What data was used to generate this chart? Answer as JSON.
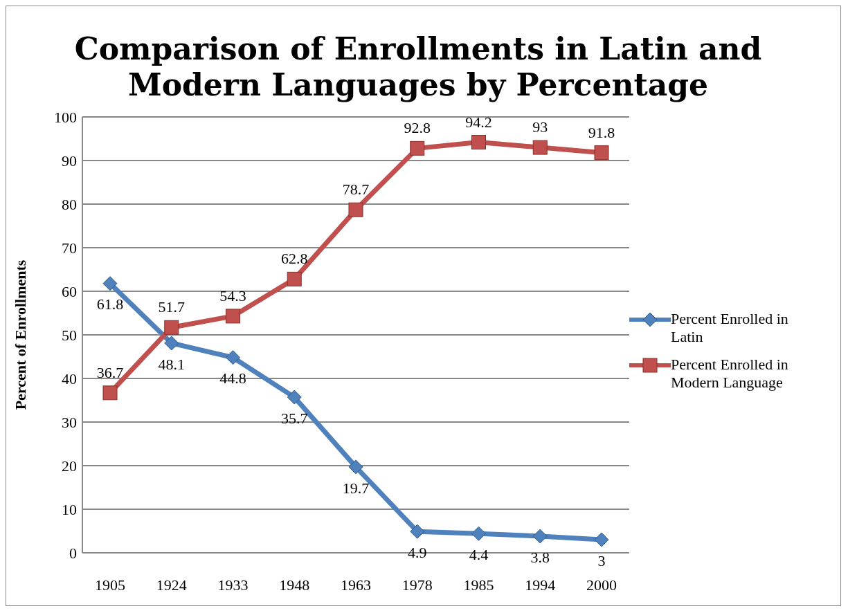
{
  "chart_data": {
    "type": "line",
    "title": "Comparison of Enrollments in Latin and Modern Languages by Percentage",
    "ylabel": "Percent of Enrollments",
    "categories": [
      "1905",
      "1924",
      "1933",
      "1948",
      "1963",
      "1978",
      "1985",
      "1994",
      "2000"
    ],
    "series": [
      {
        "name": "Percent Enrolled in Latin",
        "color": "#4f81bd",
        "marker": "diamond",
        "values": [
          61.8,
          48.1,
          44.8,
          35.7,
          19.7,
          4.9,
          4.4,
          3.8,
          3
        ]
      },
      {
        "name": "Percent Enrolled in Modern Language",
        "color": "#c0504d",
        "marker": "square",
        "values": [
          36.7,
          51.7,
          54.3,
          62.8,
          78.7,
          92.8,
          94.2,
          93,
          91.8
        ]
      }
    ],
    "ylim": [
      0,
      100
    ],
    "yticks": [
      0,
      10,
      20,
      30,
      40,
      50,
      60,
      70,
      80,
      90,
      100
    ],
    "grid": "y",
    "legend": "right",
    "data_labels": true
  }
}
